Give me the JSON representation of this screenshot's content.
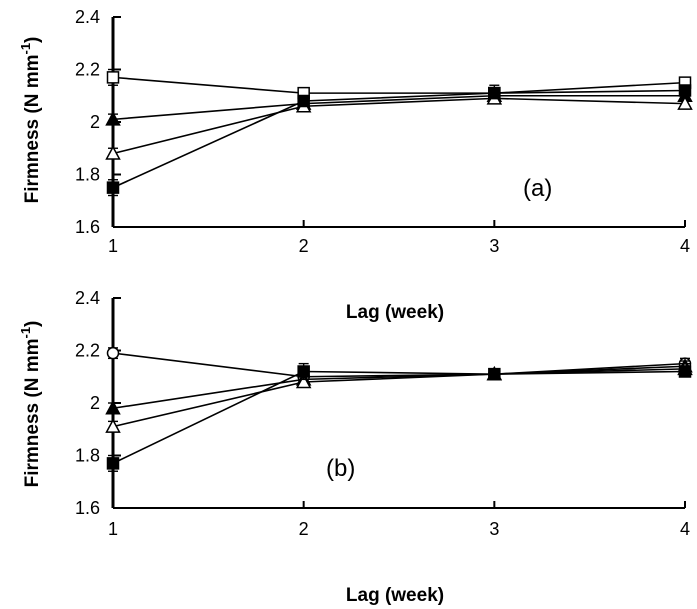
{
  "chart_data": [
    {
      "type": "line",
      "panel_label": "(a)",
      "xlabel": "Lag (week)",
      "ylabel": "Firmness (N mm-1)",
      "ylabel_main": "Firmness (N mm",
      "ylabel_sup": "-1",
      "ylabel_close": ")",
      "x": [
        1,
        2,
        3,
        4
      ],
      "x_tick_labels": [
        "1",
        "2",
        "3",
        "4"
      ],
      "ylim": [
        1.6,
        2.4
      ],
      "y_ticks": [
        1.6,
        1.8,
        2.0,
        2.2,
        2.4
      ],
      "y_tick_labels": [
        "1.6",
        "1.8",
        "2",
        "2.2",
        "2.4"
      ],
      "series": [
        {
          "marker": "open-square",
          "values": [
            2.17,
            2.11,
            2.11,
            2.15
          ],
          "err": [
            0.03,
            0.02,
            0.03,
            0.02
          ]
        },
        {
          "marker": "filled-triangle",
          "values": [
            2.01,
            2.07,
            2.1,
            2.1
          ],
          "err": [
            0.02,
            0.02,
            0.02,
            0.02
          ]
        },
        {
          "marker": "open-triangle",
          "values": [
            1.88,
            2.06,
            2.09,
            2.07
          ],
          "err": [
            0.02,
            0.02,
            0.02,
            0.02
          ]
        },
        {
          "marker": "filled-square",
          "values": [
            1.75,
            2.08,
            2.11,
            2.12
          ],
          "err": [
            0.03,
            0.02,
            0.02,
            0.02
          ]
        }
      ]
    },
    {
      "type": "line",
      "panel_label": "(b)",
      "xlabel": "Lag (week)",
      "ylabel": "Firmness (N mm-1)",
      "ylabel_main": "Firmness (N mm",
      "ylabel_sup": "-1",
      "ylabel_close": ")",
      "x": [
        1,
        2,
        3,
        4
      ],
      "x_tick_labels": [
        "1",
        "2",
        "3",
        "4"
      ],
      "ylim": [
        1.6,
        2.4
      ],
      "y_ticks": [
        1.6,
        1.8,
        2.0,
        2.2,
        2.4
      ],
      "y_tick_labels": [
        "1.6",
        "1.8",
        "2",
        "2.2",
        "2.4"
      ],
      "series": [
        {
          "marker": "open-circle",
          "values": [
            2.19,
            2.1,
            2.11,
            2.15
          ],
          "err": [
            0.02,
            0.03,
            0.02,
            0.02
          ]
        },
        {
          "marker": "filled-triangle",
          "values": [
            1.98,
            2.09,
            2.11,
            2.14
          ],
          "err": [
            0.02,
            0.02,
            0.02,
            0.02
          ]
        },
        {
          "marker": "open-triangle",
          "values": [
            1.91,
            2.08,
            2.11,
            2.13
          ],
          "err": [
            0.02,
            0.02,
            0.02,
            0.02
          ]
        },
        {
          "marker": "filled-square",
          "values": [
            1.77,
            2.12,
            2.11,
            2.12
          ],
          "err": [
            0.03,
            0.03,
            0.02,
            0.02
          ]
        }
      ]
    }
  ]
}
